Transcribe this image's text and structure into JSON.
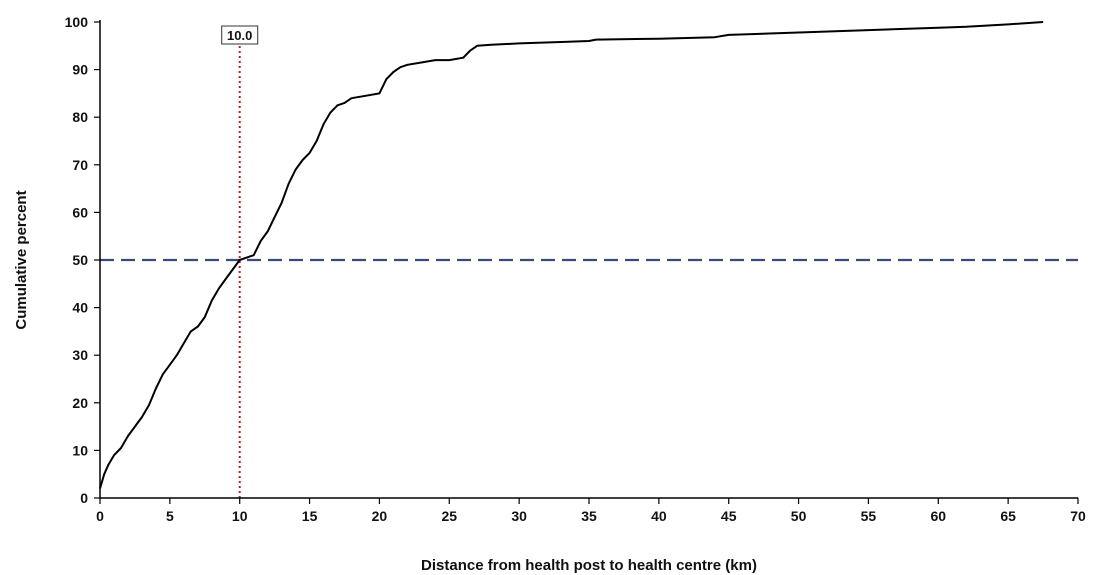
{
  "chart_data": {
    "type": "line",
    "title": "",
    "xlabel": "Distance from health post to health centre (km)",
    "ylabel": "Cumulative percent",
    "xlim": [
      0,
      70
    ],
    "ylim": [
      0,
      100
    ],
    "x_ticks": [
      0,
      5,
      10,
      15,
      20,
      25,
      30,
      35,
      40,
      45,
      50,
      55,
      60,
      65,
      70
    ],
    "y_ticks": [
      0,
      10,
      20,
      30,
      40,
      50,
      60,
      70,
      80,
      90,
      100
    ],
    "grid": false,
    "series": [
      {
        "color": "#000000",
        "x": [
          0,
          0.3,
          0.6,
          1,
          1.5,
          2,
          2.5,
          3,
          3.5,
          4,
          4.5,
          5,
          5.5,
          6,
          6.5,
          7,
          7.5,
          8,
          8.5,
          9,
          9.5,
          10,
          10.5,
          11,
          11.5,
          12,
          12.5,
          13,
          13.5,
          14,
          14.5,
          15,
          15.5,
          16,
          16.5,
          17,
          17.5,
          18,
          19,
          20,
          20.5,
          21,
          21.5,
          22,
          23,
          24,
          25,
          26,
          26.5,
          27,
          28,
          30,
          33,
          35,
          35.5,
          40,
          44,
          45,
          50,
          55,
          60,
          62,
          65,
          67.5
        ],
        "y": [
          2,
          5,
          7,
          9,
          10.5,
          13,
          15,
          17,
          19.5,
          23,
          26,
          28,
          30,
          32.5,
          35,
          36,
          38,
          41.5,
          44,
          46,
          48,
          50,
          50.5,
          51,
          54,
          56,
          59,
          62,
          66,
          69,
          71,
          72.5,
          75,
          78.5,
          81,
          82.5,
          83,
          84,
          84.5,
          85,
          88,
          89.5,
          90.5,
          91,
          91.5,
          92,
          92,
          92.5,
          94,
          95,
          95.2,
          95.5,
          95.8,
          96,
          96.3,
          96.5,
          96.8,
          97.3,
          97.8,
          98.3,
          98.8,
          99,
          99.5,
          100
        ]
      }
    ],
    "reference_lines": [
      {
        "orientation": "horizontal",
        "value": 50,
        "style": "dashed",
        "color": "#3b4a78"
      },
      {
        "orientation": "vertical",
        "value": 10,
        "style": "dotted",
        "color": "#b22222",
        "label": "10.0"
      }
    ]
  }
}
